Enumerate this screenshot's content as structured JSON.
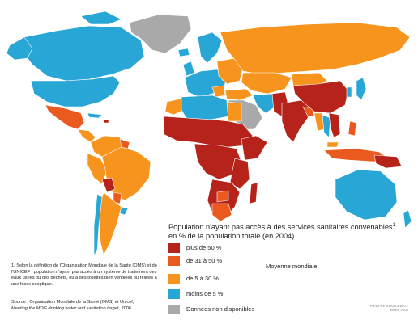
{
  "legend": {
    "title_line1": "Population n'ayant pas accès à des services sanitaires convenables",
    "title_sup": "1",
    "title_line2": "en % de la population totale (en 2004)",
    "items": [
      {
        "label": "plus de 50 %",
        "color": "#b5231b"
      },
      {
        "label": "de 31 à 50 %",
        "color": "#ea5a1f"
      },
      {
        "label": "de 5 à 30 %",
        "color": "#f7941d"
      },
      {
        "label": "moins de 5 %",
        "color": "#28a6d6"
      },
      {
        "label": "Données non disponibles",
        "color": "#a9a9a9"
      }
    ],
    "average_label": "Moyenne mondiale"
  },
  "footnote": "1. Selon la définition de l'Organisation Mondiale de la Santé (OMS) et de l'UNICEF : population n'ayant pas accès à un système de traitement des eaux usées ou des déchets, ou à des toilettes bien ventilées ou reliées à une fosse sceptique.",
  "source": {
    "prefix": "Source : Organisation Mondiale de la Santé (OMS) et Unicef,",
    "title": "Meeting the MDG drinking water and sanitation target",
    "suffix": ", 2006."
  },
  "credit": {
    "line1": "PHILIPPE REKACEWICZ",
    "line2": "MARS 2008"
  },
  "colors": {
    "ocean": "#ffffff",
    "border": "#ffffff"
  }
}
